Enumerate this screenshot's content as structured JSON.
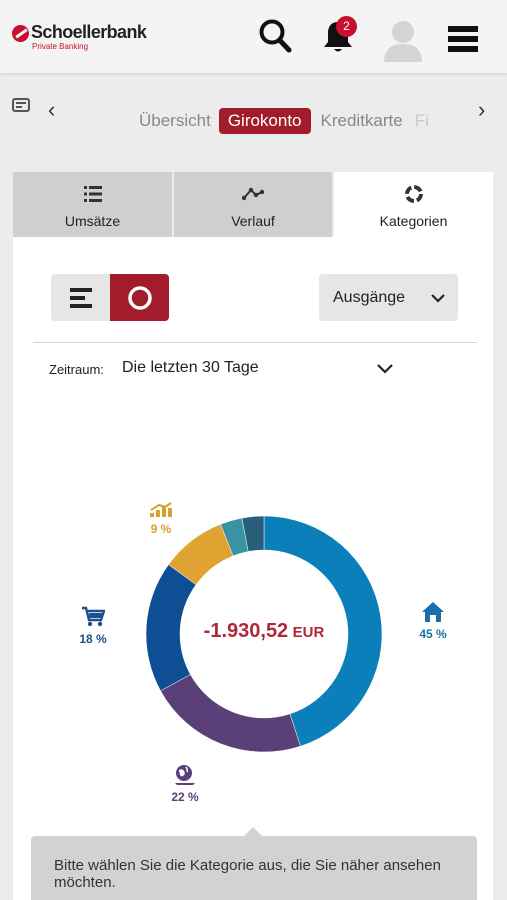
{
  "header": {
    "brand_name": "Schoellerbank",
    "brand_sub": "Private Banking",
    "notification_count": "2",
    "brand_color": "#c8102e"
  },
  "account_tabs": {
    "items": [
      {
        "label": "Übersicht",
        "state": "normal"
      },
      {
        "label": "Girokonto",
        "state": "active"
      },
      {
        "label": "Kreditkarte",
        "state": "normal"
      },
      {
        "label": "Fi",
        "state": "faded"
      }
    ],
    "accent_color": "#a31c2b"
  },
  "view_tabs": [
    {
      "label": "Umsätze",
      "icon": "list-icon"
    },
    {
      "label": "Verlauf",
      "icon": "line-chart-icon"
    },
    {
      "label": "Kategorien",
      "icon": "donut-icon"
    }
  ],
  "controls": {
    "direction_label": "Ausgänge",
    "period_label": "Zeitraum:",
    "period_value": "Die letzten 30 Tage"
  },
  "chart_data": {
    "type": "pie",
    "variant": "donut",
    "center_amount": "-1.930,52",
    "center_currency": "EUR",
    "slices": [
      {
        "icon": "home-icon",
        "label": "45 %",
        "value": 45,
        "color": "#0a7fba"
      },
      {
        "icon": "travel-icon",
        "label": "22 %",
        "value": 22,
        "color": "#5b3f78"
      },
      {
        "icon": "cart-icon",
        "label": "18 %",
        "value": 18,
        "color": "#0d4e95"
      },
      {
        "icon": "invest-icon",
        "label": "9 %",
        "value": 9,
        "color": "#e0a231"
      },
      {
        "icon": "",
        "label": "",
        "value": 3,
        "color": "#3a93a2"
      },
      {
        "icon": "",
        "label": "",
        "value": 3,
        "color": "#255f7a"
      }
    ]
  },
  "hint": {
    "text": "Bitte wählen Sie die Kategorie aus, die Sie näher ansehen möchten."
  }
}
